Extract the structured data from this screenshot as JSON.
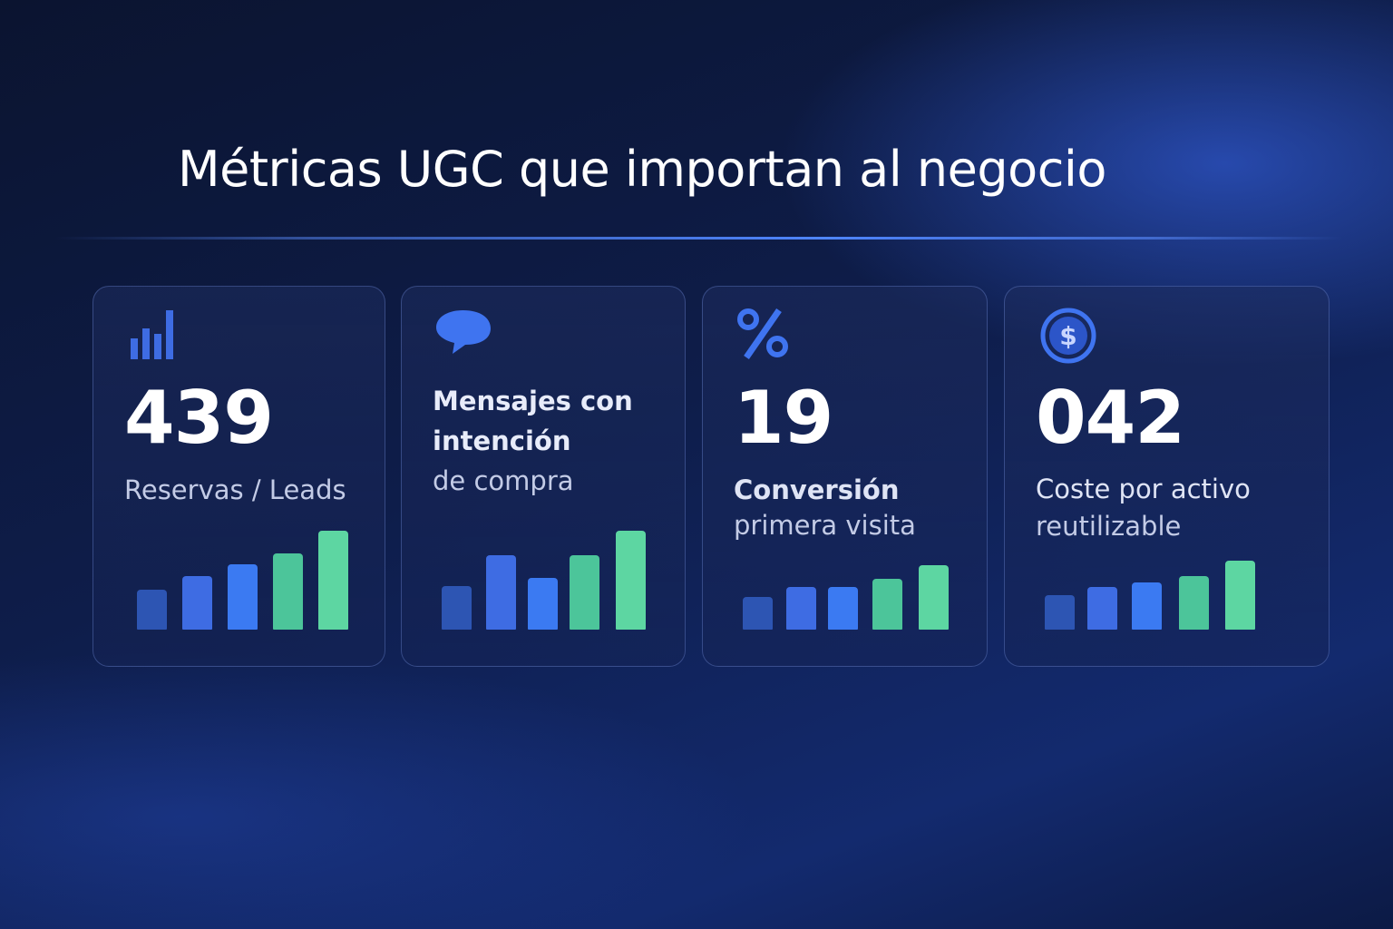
{
  "header": {
    "title": "Métricas UGC que importan al negocio"
  },
  "cards": [
    {
      "value": "439",
      "lines": [
        "Reservas / Leads"
      ]
    },
    {
      "lines": [
        "Mensajes con",
        "intención",
        "de compra"
      ]
    },
    {
      "value": "19",
      "lines": [
        "Conversión",
        "primera visita"
      ]
    },
    {
      "value": "042",
      "lines": [
        "Coste por activo",
        "reutilizable"
      ]
    }
  ]
}
